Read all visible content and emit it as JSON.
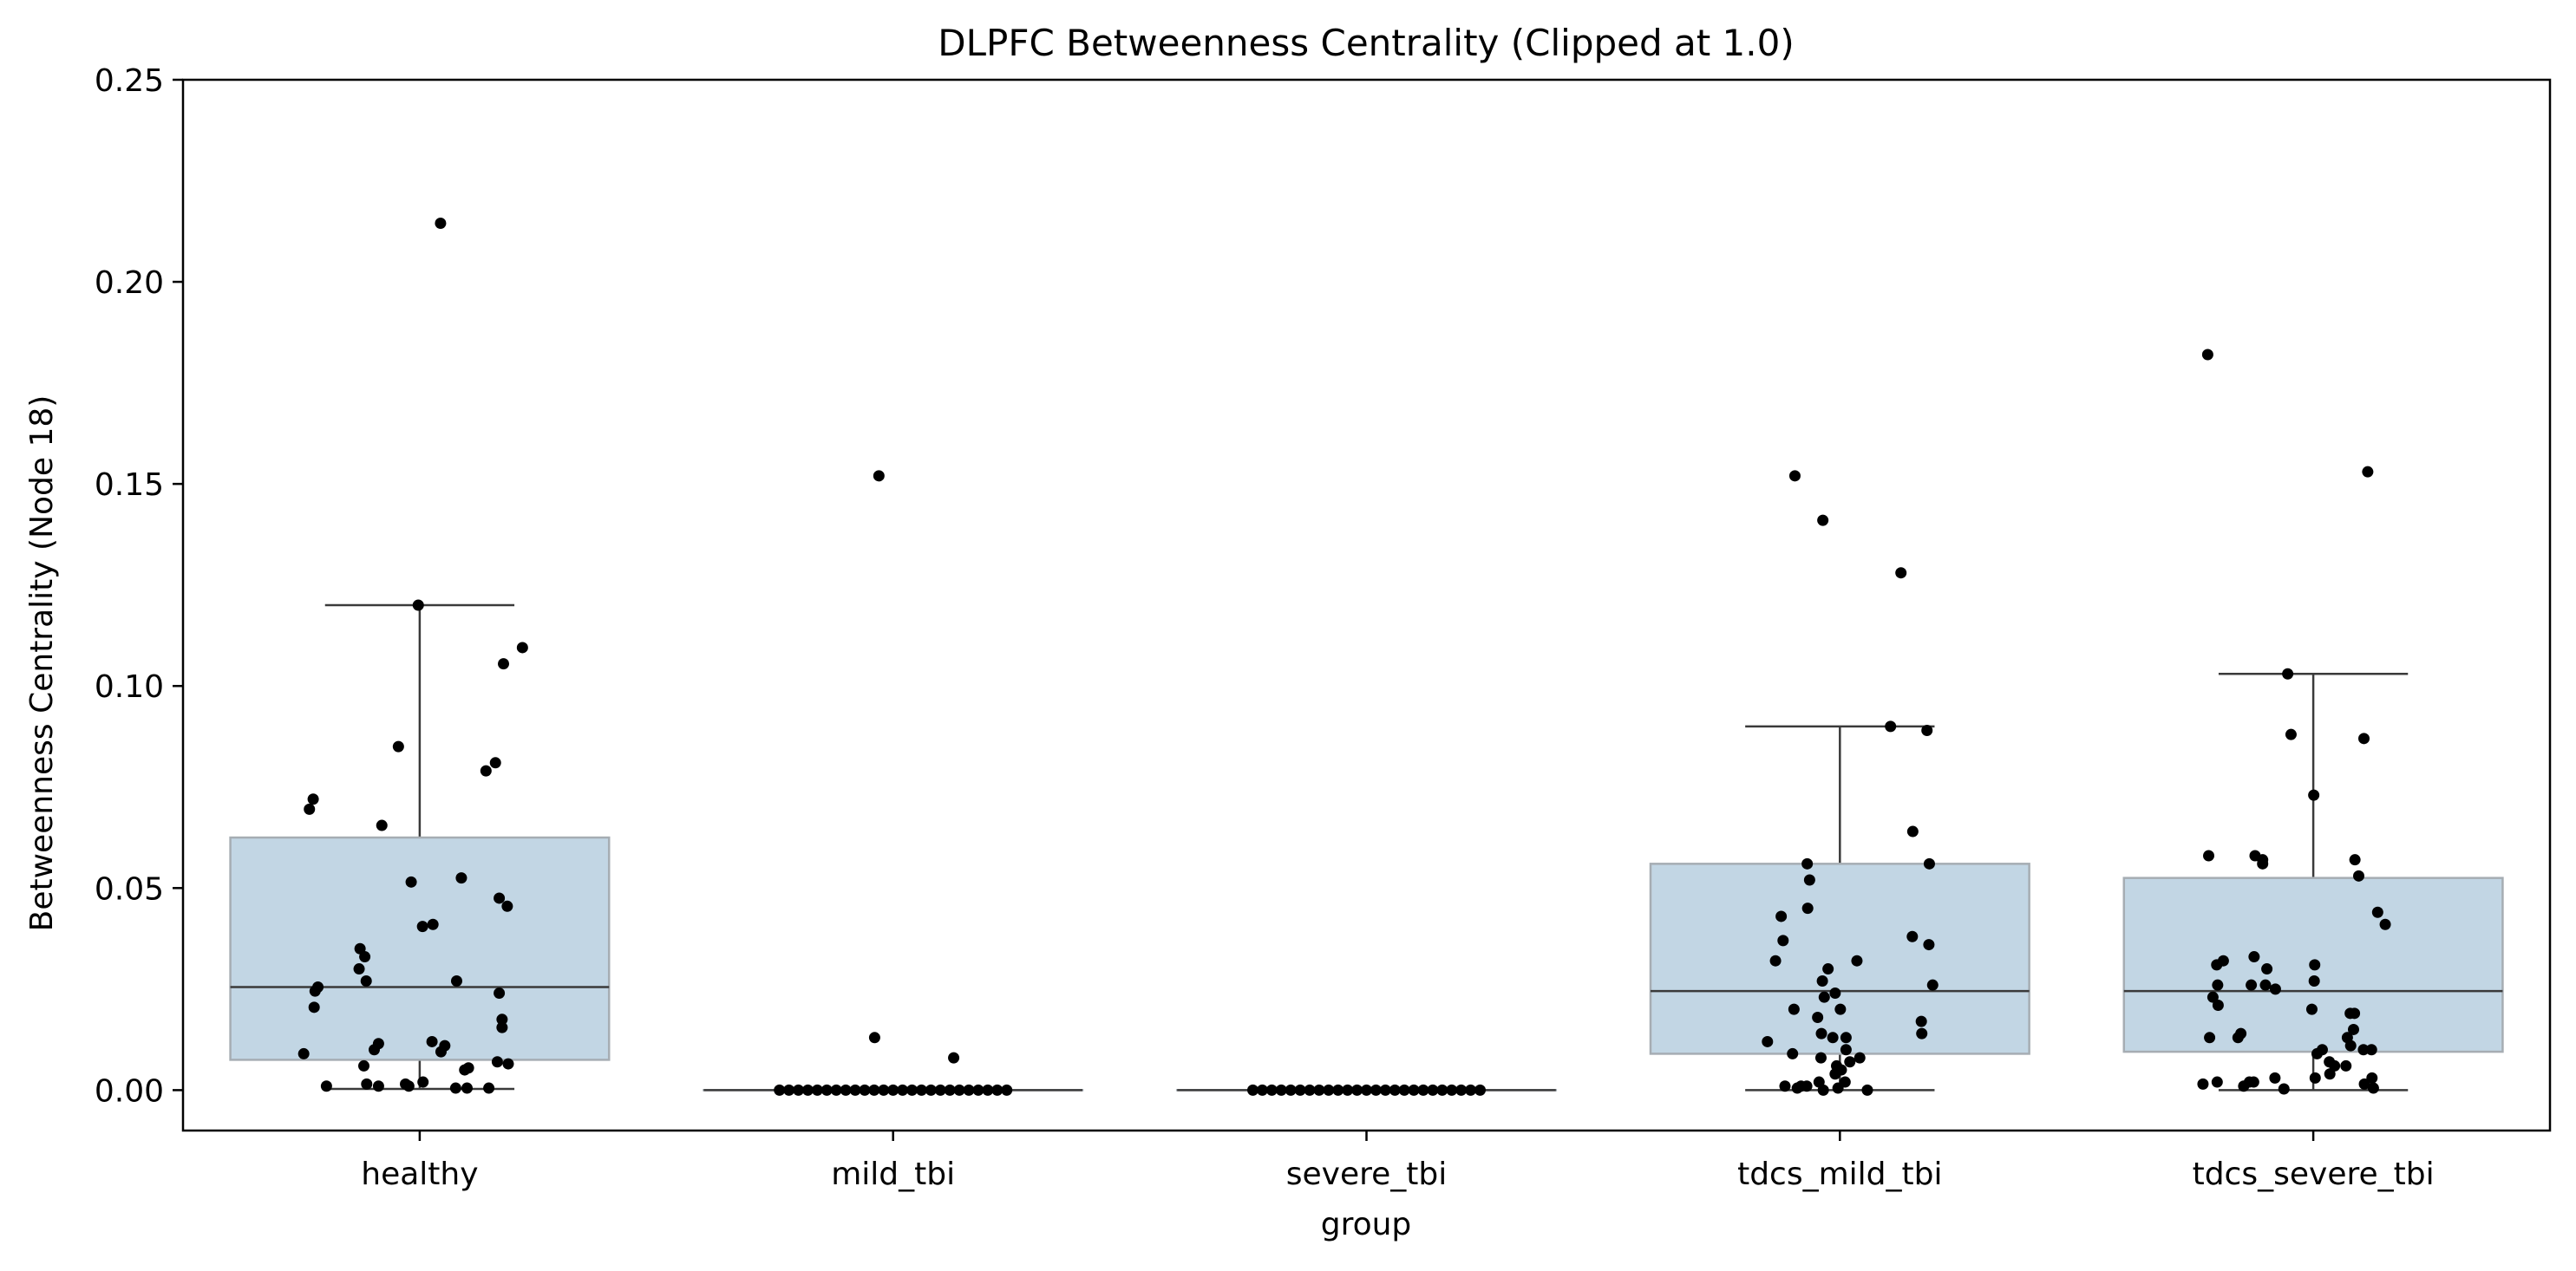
{
  "chart_data": {
    "type": "box",
    "title": "DLPFC Betweenness Centrality (Clipped at 1.0)",
    "xlabel": "group",
    "ylabel": "Betweenness Centrality (Node 18)",
    "ylim": [
      -0.01,
      0.25
    ],
    "yticks": [
      "0.00",
      "0.05",
      "0.10",
      "0.15",
      "0.20",
      "0.25"
    ],
    "categories": [
      "healthy",
      "mild_tbi",
      "severe_tbi",
      "tdcs_mild_tbi",
      "tdcs_severe_tbi"
    ],
    "box_color": "#c2d6e4",
    "box_edge_color": "#a6adb3",
    "point_color": "#000000",
    "boxes": [
      {
        "category": "healthy",
        "q1": 0.0075,
        "median": 0.0255,
        "q3": 0.0625,
        "whisker_low": 0.0003,
        "whisker_high": 0.12
      },
      {
        "category": "mild_tbi",
        "q1": 0.0,
        "median": 0.0,
        "q3": 0.0,
        "whisker_low": 0.0,
        "whisker_high": 0.0
      },
      {
        "category": "severe_tbi",
        "q1": 0.0,
        "median": 0.0,
        "q3": 0.0,
        "whisker_low": 0.0,
        "whisker_high": 0.0
      },
      {
        "category": "tdcs_mild_tbi",
        "q1": 0.009,
        "median": 0.0245,
        "q3": 0.056,
        "whisker_low": 0.0,
        "whisker_high": 0.09
      },
      {
        "category": "tdcs_severe_tbi",
        "q1": 0.0095,
        "median": 0.0245,
        "q3": 0.0525,
        "whisker_low": 0.0,
        "whisker_high": 0.103
      }
    ],
    "points": [
      [
        [
          0.044,
          0.2145
        ],
        [
          -0.003,
          0.12
        ],
        [
          0.217,
          0.1095
        ],
        [
          0.177,
          0.1055
        ],
        [
          -0.045,
          0.085
        ],
        [
          -0.225,
          0.072
        ],
        [
          -0.233,
          0.0695
        ],
        [
          0.16,
          0.081
        ],
        [
          0.14,
          0.079
        ],
        [
          -0.08,
          0.0655
        ],
        [
          -0.018,
          0.0515
        ],
        [
          0.088,
          0.0525
        ],
        [
          0.168,
          0.0475
        ],
        [
          0.185,
          0.0455
        ],
        [
          0.006,
          0.0405
        ],
        [
          0.028,
          0.041
        ],
        [
          -0.126,
          0.035
        ],
        [
          -0.116,
          0.033
        ],
        [
          -0.128,
          0.03
        ],
        [
          -0.113,
          0.027
        ],
        [
          0.078,
          0.027
        ],
        [
          -0.215,
          0.0255
        ],
        [
          -0.221,
          0.0245
        ],
        [
          0.168,
          0.024
        ],
        [
          -0.223,
          0.0205
        ],
        [
          0.174,
          0.0175
        ],
        [
          0.174,
          0.0155
        ],
        [
          0.026,
          0.012
        ],
        [
          -0.087,
          0.0115
        ],
        [
          0.053,
          0.011
        ],
        [
          -0.096,
          0.01
        ],
        [
          0.045,
          0.0095
        ],
        [
          -0.245,
          0.009
        ],
        [
          0.164,
          0.007
        ],
        [
          0.187,
          0.0065
        ],
        [
          -0.118,
          0.006
        ],
        [
          0.103,
          0.0055
        ],
        [
          0.095,
          0.005
        ],
        [
          -0.03,
          0.0015
        ],
        [
          0.007,
          0.002
        ],
        [
          -0.112,
          0.0015
        ],
        [
          0.146,
          0.0005
        ],
        [
          -0.197,
          0.001
        ],
        [
          -0.087,
          0.001
        ],
        [
          -0.023,
          0.001
        ],
        [
          0.1,
          0.0005
        ],
        [
          0.076,
          0.0005
        ]
      ],
      [
        [
          -0.03,
          0.152
        ],
        [
          -0.039,
          0.013
        ],
        [
          0.128,
          0.008
        ],
        [
          -0.24,
          0.0
        ],
        [
          -0.22,
          0.0
        ],
        [
          -0.2,
          0.0
        ],
        [
          -0.18,
          0.0
        ],
        [
          -0.16,
          0.0
        ],
        [
          -0.14,
          0.0
        ],
        [
          -0.12,
          0.0
        ],
        [
          -0.1,
          0.0
        ],
        [
          -0.08,
          0.0
        ],
        [
          -0.06,
          0.0
        ],
        [
          -0.04,
          0.0
        ],
        [
          -0.02,
          0.0
        ],
        [
          0.0,
          0.0
        ],
        [
          0.02,
          0.0
        ],
        [
          0.04,
          0.0
        ],
        [
          0.06,
          0.0
        ],
        [
          0.08,
          0.0
        ],
        [
          0.1,
          0.0
        ],
        [
          0.12,
          0.0
        ],
        [
          0.14,
          0.0
        ],
        [
          0.16,
          0.0
        ],
        [
          0.18,
          0.0
        ],
        [
          0.2,
          0.0
        ],
        [
          0.22,
          0.0
        ],
        [
          0.24,
          0.0
        ]
      ],
      [
        [
          -0.24,
          0.0
        ],
        [
          -0.22,
          0.0
        ],
        [
          -0.2,
          0.0
        ],
        [
          -0.18,
          0.0
        ],
        [
          -0.16,
          0.0
        ],
        [
          -0.14,
          0.0
        ],
        [
          -0.12,
          0.0
        ],
        [
          -0.1,
          0.0
        ],
        [
          -0.08,
          0.0
        ],
        [
          -0.06,
          0.0
        ],
        [
          -0.04,
          0.0
        ],
        [
          -0.02,
          0.0
        ],
        [
          0.0,
          0.0
        ],
        [
          0.02,
          0.0
        ],
        [
          0.04,
          0.0
        ],
        [
          0.06,
          0.0
        ],
        [
          0.08,
          0.0
        ],
        [
          0.1,
          0.0
        ],
        [
          0.12,
          0.0
        ],
        [
          0.14,
          0.0
        ],
        [
          0.16,
          0.0
        ],
        [
          0.18,
          0.0
        ],
        [
          0.2,
          0.0
        ],
        [
          0.22,
          0.0
        ],
        [
          0.24,
          0.0
        ]
      ],
      [
        [
          -0.095,
          0.152
        ],
        [
          -0.036,
          0.141
        ],
        [
          0.129,
          0.128
        ],
        [
          0.107,
          0.09
        ],
        [
          0.184,
          0.089
        ],
        [
          0.154,
          0.064
        ],
        [
          -0.069,
          0.056
        ],
        [
          0.189,
          0.056
        ],
        [
          -0.064,
          0.052
        ],
        [
          -0.124,
          0.043
        ],
        [
          -0.068,
          0.045
        ],
        [
          -0.12,
          0.037
        ],
        [
          0.153,
          0.038
        ],
        [
          0.188,
          0.036
        ],
        [
          0.036,
          0.032
        ],
        [
          -0.136,
          0.032
        ],
        [
          -0.025,
          0.03
        ],
        [
          -0.037,
          0.027
        ],
        [
          -0.01,
          0.024
        ],
        [
          -0.033,
          0.023
        ],
        [
          0.196,
          0.026
        ],
        [
          -0.097,
          0.02
        ],
        [
          0.001,
          0.02
        ],
        [
          -0.047,
          0.018
        ],
        [
          0.172,
          0.017
        ],
        [
          0.173,
          0.014
        ],
        [
          -0.015,
          0.013
        ],
        [
          -0.039,
          0.014
        ],
        [
          0.013,
          0.013
        ],
        [
          -0.153,
          0.012
        ],
        [
          0.013,
          0.01
        ],
        [
          -0.1,
          0.009
        ],
        [
          -0.04,
          0.008
        ],
        [
          0.042,
          0.008
        ],
        [
          0.021,
          0.007
        ],
        [
          -0.01,
          0.004
        ],
        [
          -0.007,
          0.006
        ],
        [
          0.003,
          0.005
        ],
        [
          -0.044,
          0.002
        ],
        [
          0.011,
          0.002
        ],
        [
          -0.116,
          0.001
        ],
        [
          -0.082,
          0.001
        ],
        [
          -0.004,
          0.0005
        ],
        [
          -0.07,
          0.001
        ],
        [
          -0.035,
          0.0
        ],
        [
          0.058,
          0.0
        ],
        [
          -0.09,
          0.0005
        ]
      ],
      [
        [
          -0.223,
          0.182
        ],
        [
          0.115,
          0.153
        ],
        [
          -0.054,
          0.103
        ],
        [
          -0.047,
          0.088
        ],
        [
          0.107,
          0.087
        ],
        [
          0.001,
          0.073
        ],
        [
          -0.221,
          0.058
        ],
        [
          -0.123,
          0.058
        ],
        [
          -0.107,
          0.057
        ],
        [
          0.088,
          0.057
        ],
        [
          0.096,
          0.053
        ],
        [
          -0.107,
          0.056
        ],
        [
          0.152,
          0.041
        ],
        [
          0.136,
          0.044
        ],
        [
          -0.19,
          0.032
        ],
        [
          -0.125,
          0.033
        ],
        [
          -0.204,
          0.031
        ],
        [
          0.003,
          0.031
        ],
        [
          -0.098,
          0.03
        ],
        [
          -0.202,
          0.026
        ],
        [
          -0.131,
          0.026
        ],
        [
          -0.101,
          0.026
        ],
        [
          -0.08,
          0.025
        ],
        [
          -0.212,
          0.023
        ],
        [
          0.002,
          0.027
        ],
        [
          0.078,
          0.019
        ],
        [
          -0.201,
          0.021
        ],
        [
          -0.003,
          0.02
        ],
        [
          0.087,
          0.019
        ],
        [
          -0.153,
          0.014
        ],
        [
          -0.159,
          0.013
        ],
        [
          -0.219,
          0.013
        ],
        [
          0.085,
          0.015
        ],
        [
          0.072,
          0.013
        ],
        [
          0.079,
          0.011
        ],
        [
          0.008,
          0.009
        ],
        [
          0.019,
          0.01
        ],
        [
          0.123,
          0.01
        ],
        [
          0.106,
          0.01
        ],
        [
          0.034,
          0.007
        ],
        [
          0.045,
          0.006
        ],
        [
          0.069,
          0.006
        ],
        [
          0.035,
          0.004
        ],
        [
          -0.081,
          0.003
        ],
        [
          0.004,
          0.003
        ],
        [
          -0.203,
          0.002
        ],
        [
          -0.126,
          0.002
        ],
        [
          0.124,
          0.003
        ],
        [
          -0.147,
          0.001
        ],
        [
          -0.233,
          0.0015
        ],
        [
          0.108,
          0.0015
        ],
        [
          -0.135,
          0.002
        ],
        [
          0.127,
          0.0005
        ],
        [
          -0.062,
          0.0003
        ]
      ]
    ]
  }
}
